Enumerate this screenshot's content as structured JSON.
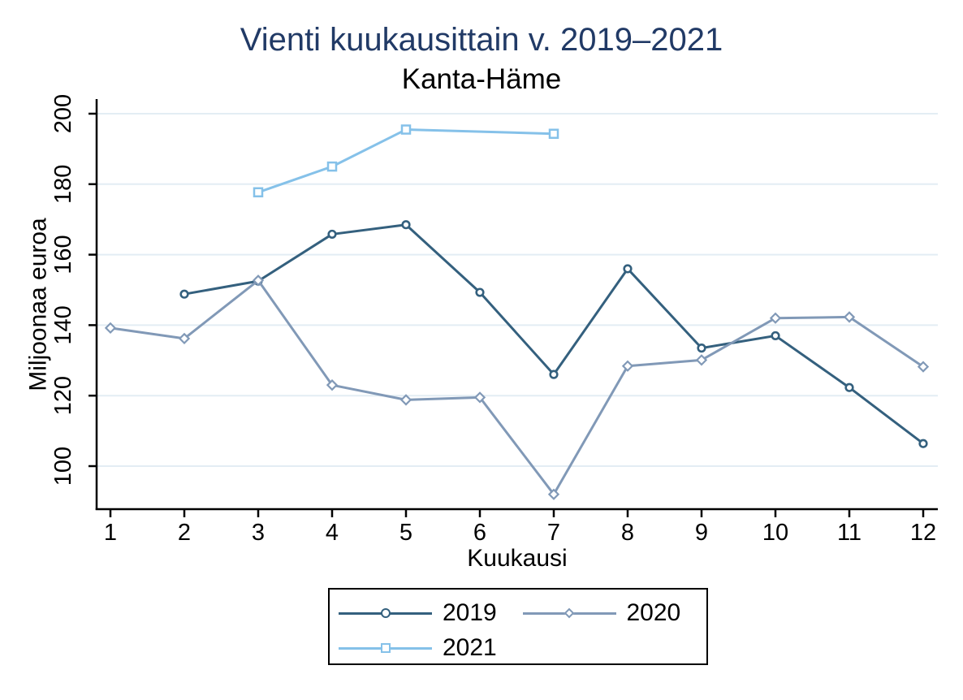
{
  "chart_data": {
    "type": "line",
    "title": "Vienti kuukausittain v. 2019–2021",
    "subtitle": "Kanta-Häme",
    "xlabel": "Kuukausi",
    "ylabel": "Miljoonaa euroa",
    "x_ticks": [
      1,
      2,
      3,
      4,
      5,
      6,
      7,
      8,
      9,
      10,
      11,
      12
    ],
    "y_ticks": [
      100,
      120,
      140,
      160,
      180,
      200
    ],
    "ylim": [
      88,
      204
    ],
    "grid": "horizontal-only",
    "legend_position": "bottom",
    "series": [
      {
        "name": "2019",
        "marker": "circle",
        "color": "#34607e",
        "x": [
          2,
          3,
          4,
          5,
          6,
          7,
          8,
          9,
          10,
          11,
          12
        ],
        "values": [
          148.8,
          152.5,
          165.8,
          168.5,
          149.3,
          126.0,
          156.0,
          133.5,
          137.0,
          122.3,
          106.4
        ]
      },
      {
        "name": "2020",
        "marker": "diamond",
        "color": "#8199b7",
        "x": [
          1,
          2,
          3,
          4,
          5,
          6,
          7,
          8,
          9,
          10,
          11,
          12
        ],
        "values": [
          139.2,
          136.2,
          152.7,
          123.0,
          118.8,
          119.5,
          92.0,
          128.4,
          130.1,
          142.0,
          142.3,
          128.2
        ]
      },
      {
        "name": "2021",
        "marker": "square",
        "color": "#85c1e9",
        "x": [
          3,
          4,
          5,
          7
        ],
        "values": [
          177.7,
          185.0,
          195.5,
          194.3
        ]
      }
    ],
    "colors": {
      "grid": "#e3edf4",
      "axis": "#000000",
      "title": "#213a66",
      "subtitle": "#000000",
      "background": "#ffffff"
    }
  }
}
